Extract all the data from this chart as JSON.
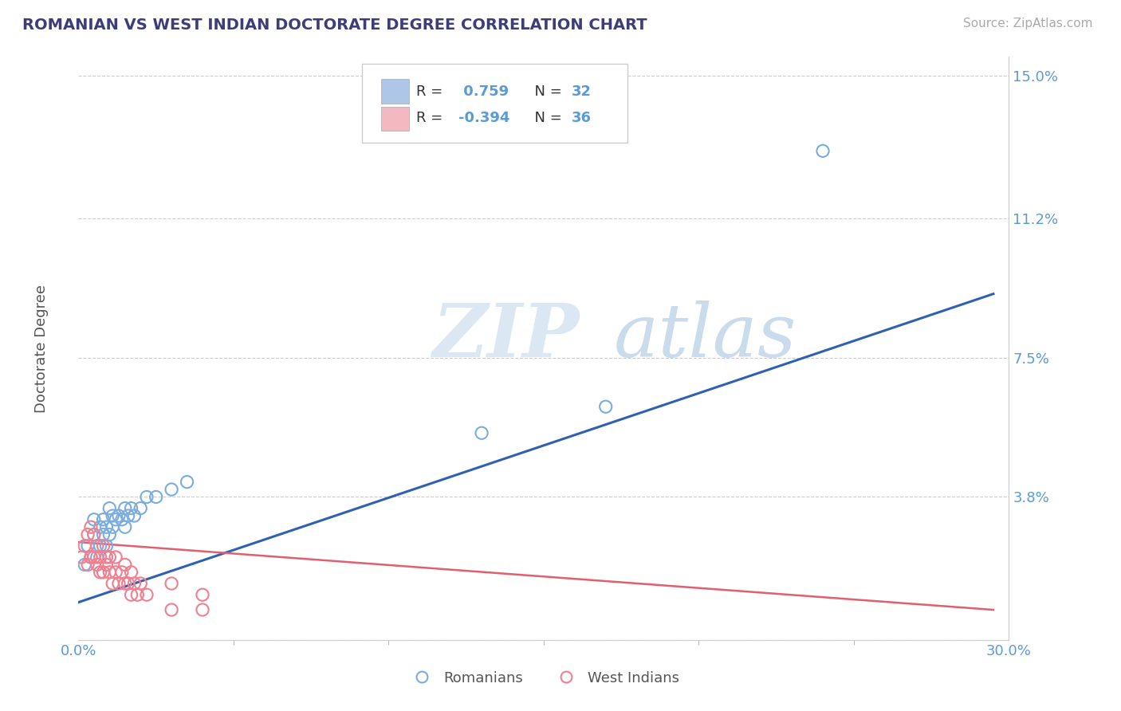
{
  "title": "ROMANIAN VS WEST INDIAN DOCTORATE DEGREE CORRELATION CHART",
  "source": "Source: ZipAtlas.com",
  "ylabel": "Doctorate Degree",
  "xlabel": "",
  "background_color": "#ffffff",
  "plot_bg_color": "#ffffff",
  "title_color": "#3d3d7a",
  "axis_color": "#5b9bd5",
  "tick_label_color": "#5b9bd5",
  "watermark_zip": "ZIP",
  "watermark_atlas": "atlas",
  "xlim": [
    0.0,
    0.3
  ],
  "ylim": [
    0.0,
    0.155
  ],
  "ytick_values": [
    0.0,
    0.038,
    0.075,
    0.112,
    0.15
  ],
  "ytick_labels": [
    "",
    "3.8%",
    "7.5%",
    "11.2%",
    "15.0%"
  ],
  "grid_color": "#cccccc",
  "legend_box_color_1": "#aec6e8",
  "legend_box_color_2": "#f4b8c1",
  "r1": 0.759,
  "n1": 32,
  "r2": -0.394,
  "n2": 36,
  "scatter_color_1": "#7aadde",
  "scatter_color_2": "#f08090",
  "trend_color_1": "#3060b0",
  "trend_color_2": "#e06070",
  "romanians_label": "Romanians",
  "west_indians_label": "West Indians",
  "romanians_x": [
    0.002,
    0.003,
    0.004,
    0.005,
    0.005,
    0.006,
    0.007,
    0.007,
    0.008,
    0.008,
    0.009,
    0.009,
    0.01,
    0.01,
    0.011,
    0.011,
    0.012,
    0.013,
    0.014,
    0.015,
    0.015,
    0.016,
    0.017,
    0.018,
    0.02,
    0.022,
    0.025,
    0.03,
    0.035,
    0.13,
    0.17,
    0.24
  ],
  "romanians_y": [
    0.02,
    0.025,
    0.022,
    0.028,
    0.032,
    0.022,
    0.025,
    0.03,
    0.028,
    0.032,
    0.025,
    0.03,
    0.028,
    0.035,
    0.03,
    0.033,
    0.032,
    0.033,
    0.032,
    0.035,
    0.03,
    0.033,
    0.035,
    0.033,
    0.035,
    0.038,
    0.038,
    0.04,
    0.042,
    0.055,
    0.062,
    0.13
  ],
  "west_indians_x": [
    0.001,
    0.002,
    0.003,
    0.003,
    0.004,
    0.004,
    0.005,
    0.005,
    0.006,
    0.006,
    0.007,
    0.007,
    0.008,
    0.008,
    0.009,
    0.009,
    0.01,
    0.01,
    0.011,
    0.012,
    0.012,
    0.013,
    0.014,
    0.015,
    0.015,
    0.016,
    0.017,
    0.017,
    0.018,
    0.019,
    0.02,
    0.022,
    0.03,
    0.03,
    0.04,
    0.04
  ],
  "west_indians_y": [
    0.022,
    0.025,
    0.02,
    0.028,
    0.022,
    0.03,
    0.022,
    0.028,
    0.02,
    0.025,
    0.018,
    0.022,
    0.018,
    0.025,
    0.02,
    0.022,
    0.018,
    0.022,
    0.015,
    0.018,
    0.022,
    0.015,
    0.018,
    0.015,
    0.02,
    0.015,
    0.012,
    0.018,
    0.015,
    0.012,
    0.015,
    0.012,
    0.015,
    0.008,
    0.012,
    0.008
  ],
  "trend1_x0": 0.0,
  "trend1_x1": 0.295,
  "trend1_y0": 0.01,
  "trend1_y1": 0.092,
  "trend2_x0": 0.0,
  "trend2_x1": 0.295,
  "trend2_y0": 0.026,
  "trend2_y1": 0.008
}
